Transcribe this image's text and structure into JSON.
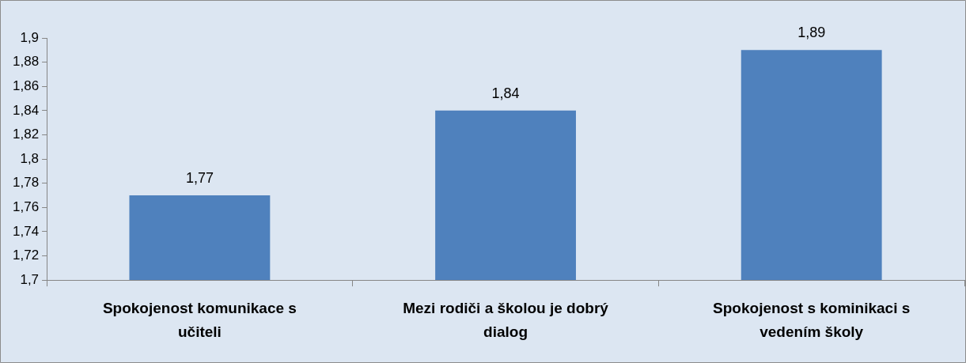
{
  "chart_data": {
    "type": "bar",
    "categories": [
      "Spokojenost komunikace s učiteli",
      "Mezi rodiči a školou je dobrý dialog",
      "Spokojenost s kominikaci s vedením školy"
    ],
    "values": [
      1.77,
      1.84,
      1.89
    ],
    "value_labels": [
      "1,77",
      "1,84",
      "1,89"
    ],
    "color": "#4f81bd",
    "ylim": [
      1.7,
      1.9
    ],
    "yticks": [
      {
        "value": 1.7,
        "label": "1,7"
      },
      {
        "value": 1.72,
        "label": "1,72"
      },
      {
        "value": 1.74,
        "label": "1,74"
      },
      {
        "value": 1.76,
        "label": "1,76"
      },
      {
        "value": 1.78,
        "label": "1,78"
      },
      {
        "value": 1.8,
        "label": "1,8"
      },
      {
        "value": 1.82,
        "label": "1,82"
      },
      {
        "value": 1.84,
        "label": "1,84"
      },
      {
        "value": 1.86,
        "label": "1,86"
      },
      {
        "value": 1.88,
        "label": "1,88"
      },
      {
        "value": 1.9,
        "label": "1,9"
      }
    ],
    "grid": false,
    "legend": false
  }
}
